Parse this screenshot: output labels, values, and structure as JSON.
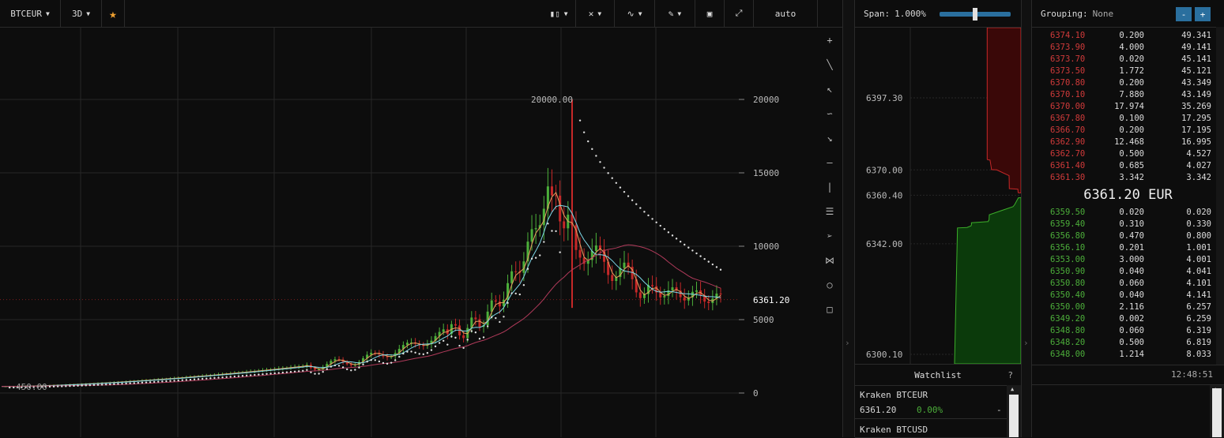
{
  "toolbar": {
    "symbol": "BTCEUR",
    "interval": "3D",
    "star_icon": "star-icon",
    "icons": [
      "candles-icon",
      "crosshair-icon",
      "indicators-icon",
      "draw-icon",
      "screenshot-icon",
      "fullscreen-icon"
    ],
    "scale_mode": "auto"
  },
  "chart": {
    "price_levels": [
      "20000",
      "15000",
      "10000",
      "5000",
      "0"
    ],
    "current_price": "6361.20",
    "peak_label": "20000.00",
    "low_label": "450.00",
    "colors": {
      "bull": "#4caf3a",
      "bear": "#c62828",
      "ma_fast": "#e8a060",
      "ma_slow": "#7fd8e8",
      "ma_long": "#b03a5a",
      "sar": "#e0e0e0"
    }
  },
  "side_tools": [
    "plus-icon",
    "line-icon",
    "arrow-ne-icon",
    "curve-icon",
    "arrow-se-icon",
    "horizontal-line-icon",
    "vertical-line-icon",
    "lines-icon",
    "cursor-icon",
    "fork-icon",
    "circle-icon",
    "square-icon"
  ],
  "depth": {
    "span_label": "Span:",
    "span_value": "1.000%",
    "levels": [
      "6397.30",
      "6370.00",
      "6360.40",
      "6342.00",
      "6300.10"
    ]
  },
  "watchlist": {
    "title": "Watchlist",
    "help": "?",
    "items": [
      {
        "name": "Kraken  BTCEUR",
        "price": "6361.20",
        "change": "0.00%",
        "dash": "-"
      },
      {
        "name": "Kraken  BTCUSD"
      }
    ]
  },
  "book": {
    "grouping_label": "Grouping:",
    "grouping_value": "None",
    "minus": "-",
    "plus": "+",
    "asks": [
      {
        "p": "6374.10",
        "a": "0.200",
        "t": "49.341"
      },
      {
        "p": "6373.90",
        "a": "4.000",
        "t": "49.141"
      },
      {
        "p": "6373.70",
        "a": "0.020",
        "t": "45.141"
      },
      {
        "p": "6373.50",
        "a": "1.772",
        "t": "45.121"
      },
      {
        "p": "6370.80",
        "a": "0.200",
        "t": "43.349"
      },
      {
        "p": "6370.10",
        "a": "7.880",
        "t": "43.149"
      },
      {
        "p": "6370.00",
        "a": "17.974",
        "t": "35.269"
      },
      {
        "p": "6367.80",
        "a": "0.100",
        "t": "17.295"
      },
      {
        "p": "6366.70",
        "a": "0.200",
        "t": "17.195"
      },
      {
        "p": "6362.90",
        "a": "12.468",
        "t": "16.995"
      },
      {
        "p": "6362.70",
        "a": "0.500",
        "t": "4.527"
      },
      {
        "p": "6361.40",
        "a": "0.685",
        "t": "4.027"
      },
      {
        "p": "6361.30",
        "a": "3.342",
        "t": "3.342"
      }
    ],
    "mid": "6361.20 EUR",
    "bids": [
      {
        "p": "6359.50",
        "a": "0.020",
        "t": "0.020"
      },
      {
        "p": "6359.40",
        "a": "0.310",
        "t": "0.330"
      },
      {
        "p": "6356.80",
        "a": "0.470",
        "t": "0.800"
      },
      {
        "p": "6356.10",
        "a": "0.201",
        "t": "1.001"
      },
      {
        "p": "6353.00",
        "a": "3.000",
        "t": "4.001"
      },
      {
        "p": "6350.90",
        "a": "0.040",
        "t": "4.041"
      },
      {
        "p": "6350.80",
        "a": "0.060",
        "t": "4.101"
      },
      {
        "p": "6350.40",
        "a": "0.040",
        "t": "4.141"
      },
      {
        "p": "6350.00",
        "a": "2.116",
        "t": "6.257"
      },
      {
        "p": "6349.20",
        "a": "0.002",
        "t": "6.259"
      },
      {
        "p": "6348.80",
        "a": "0.060",
        "t": "6.319"
      },
      {
        "p": "6348.20",
        "a": "0.500",
        "t": "6.819"
      },
      {
        "p": "6348.00",
        "a": "1.214",
        "t": "8.033"
      }
    ],
    "time": "12:48:51"
  }
}
